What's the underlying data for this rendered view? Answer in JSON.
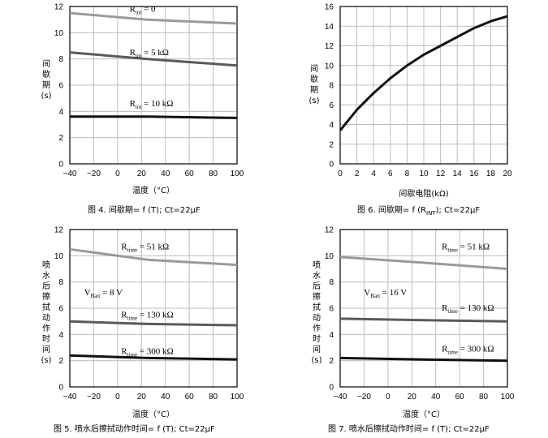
{
  "chart_data": [
    {
      "id": "fig4",
      "type": "line",
      "caption": "图 4. 间歇期= f (T); Ct=22µF",
      "xlabel": "温度（°C）",
      "ylabel": [
        "间",
        "歇",
        "期",
        "(s)"
      ],
      "xlim": [
        -40,
        100
      ],
      "ylim": [
        0,
        12
      ],
      "xticks": [
        -40,
        -20,
        0,
        20,
        40,
        60,
        80,
        100
      ],
      "yticks": [
        0,
        2,
        4,
        6,
        8,
        10,
        12
      ],
      "series": [
        {
          "name": "Rint = 0",
          "label_main": "R",
          "label_sub": "int",
          "label_rest": " = 0",
          "label_at": [
            10,
            11.6
          ],
          "color": "#9a9a9a",
          "width": 3,
          "x": [
            -40,
            25,
            100
          ],
          "y": [
            11.5,
            11.0,
            10.7
          ]
        },
        {
          "name": "Rint = 5 kΩ",
          "label_main": "R",
          "label_sub": "int",
          "label_rest": " = 5 kΩ",
          "label_at": [
            10,
            8.3
          ],
          "color": "#5a5a5a",
          "width": 3,
          "x": [
            -40,
            25,
            100
          ],
          "y": [
            8.5,
            8.0,
            7.5
          ]
        },
        {
          "name": "Rint = 10 kΩ",
          "label_main": "R",
          "label_sub": "int",
          "label_rest": " = 10 kΩ",
          "label_at": [
            10,
            4.4
          ],
          "color": "#111111",
          "width": 3,
          "x": [
            -40,
            25,
            100
          ],
          "y": [
            3.6,
            3.6,
            3.5
          ]
        }
      ],
      "annotations": []
    },
    {
      "id": "fig6",
      "type": "line",
      "caption_parts": [
        "图 6. 间歇期= f (R",
        "INT",
        "); Ct=22µF"
      ],
      "xlabel": "间歇电阻(kΩ)",
      "ylabel": [
        "间",
        "歇",
        "期",
        "(s)"
      ],
      "xlim": [
        0,
        20
      ],
      "ylim": [
        0,
        16
      ],
      "xticks": [
        0,
        2,
        4,
        6,
        8,
        10,
        12,
        14,
        16,
        18,
        20
      ],
      "yticks": [
        0,
        2,
        4,
        6,
        8,
        10,
        12,
        14,
        16
      ],
      "series": [
        {
          "name": "interval",
          "color": "#111111",
          "width": 3,
          "x": [
            0,
            2,
            4,
            6,
            8,
            10,
            12,
            14,
            16,
            18,
            20
          ],
          "y": [
            3.4,
            5.5,
            7.2,
            8.7,
            10.0,
            11.1,
            12.0,
            12.9,
            13.8,
            14.5,
            15.0
          ]
        }
      ],
      "annotations": []
    },
    {
      "id": "fig5",
      "type": "line",
      "caption": "图 5. 喷水后擦拭动作时间= f (T); Ct=22µF",
      "xlabel": "温度（°C）",
      "ylabel": [
        "喷",
        "水",
        "后",
        "擦",
        "拭",
        "动",
        "作",
        "时",
        "间",
        "(s)"
      ],
      "xlim": [
        -40,
        100
      ],
      "ylim": [
        0,
        12
      ],
      "xticks": [
        -40,
        -20,
        0,
        20,
        40,
        60,
        80,
        100
      ],
      "yticks": [
        0,
        2,
        4,
        6,
        8,
        10,
        12
      ],
      "series": [
        {
          "name": "Rtime = 51 kΩ",
          "label_main": "R",
          "label_sub": "time",
          "label_rest": " = 51 kΩ",
          "label_at": [
            3,
            10.5
          ],
          "color": "#9a9a9a",
          "width": 3,
          "x": [
            -40,
            25,
            100
          ],
          "y": [
            10.5,
            9.7,
            9.3
          ]
        },
        {
          "name": "Rtime = 130 kΩ",
          "label_main": "R",
          "label_sub": "time",
          "label_rest": " = 130 kΩ",
          "label_at": [
            3,
            5.3
          ],
          "color": "#5a5a5a",
          "width": 3,
          "x": [
            -40,
            25,
            100
          ],
          "y": [
            5.0,
            4.8,
            4.7
          ]
        },
        {
          "name": "Rtime = 300 kΩ",
          "label_main": "R",
          "label_sub": "time",
          "label_rest": " = 300 kΩ",
          "label_at": [
            3,
            2.5
          ],
          "color": "#111111",
          "width": 3,
          "x": [
            -40,
            25,
            100
          ],
          "y": [
            2.4,
            2.2,
            2.1
          ]
        }
      ],
      "annotations": [
        {
          "label_main": "V",
          "label_sub": "Batt",
          "label_rest": " = 8 V",
          "at": [
            -28,
            7.0
          ]
        }
      ]
    },
    {
      "id": "fig7",
      "type": "line",
      "caption": "图 7. 喷水后擦拭动作时间= f (T); Ct=22µF",
      "xlabel": "温度（°C）",
      "ylabel": [
        "喷",
        "水",
        "后",
        "擦",
        "拭",
        "动",
        "作",
        "时",
        "间",
        "(s)"
      ],
      "xlim": [
        -40,
        100
      ],
      "ylim": [
        0,
        12
      ],
      "xticks": [
        -40,
        -20,
        0,
        20,
        40,
        60,
        80,
        100
      ],
      "yticks": [
        0,
        2,
        4,
        6,
        8,
        10,
        12
      ],
      "series": [
        {
          "name": "Rtime = 51 kΩ",
          "label_main": "R",
          "label_sub": "time",
          "label_rest": " = 51 kΩ",
          "label_at": [
            45,
            10.5
          ],
          "color": "#9a9a9a",
          "width": 3,
          "x": [
            -40,
            25,
            100
          ],
          "y": [
            9.9,
            9.5,
            9.0
          ]
        },
        {
          "name": "Rtime = 130 kΩ",
          "label_main": "R",
          "label_sub": "time",
          "label_rest": " = 130 kΩ",
          "label_at": [
            45,
            5.8
          ],
          "color": "#5a5a5a",
          "width": 3,
          "x": [
            -40,
            25,
            100
          ],
          "y": [
            5.2,
            5.1,
            5.0
          ]
        },
        {
          "name": "Rtime = 300 kΩ",
          "label_main": "R",
          "label_sub": "time",
          "label_rest": " = 300 kΩ",
          "label_at": [
            45,
            2.7
          ],
          "color": "#111111",
          "width": 3,
          "x": [
            -40,
            25,
            100
          ],
          "y": [
            2.2,
            2.1,
            2.0
          ]
        }
      ],
      "annotations": [
        {
          "label_main": "V",
          "label_sub": "Batt",
          "label_rest": " = 16 V",
          "at": [
            -20,
            7.0
          ]
        }
      ]
    }
  ]
}
